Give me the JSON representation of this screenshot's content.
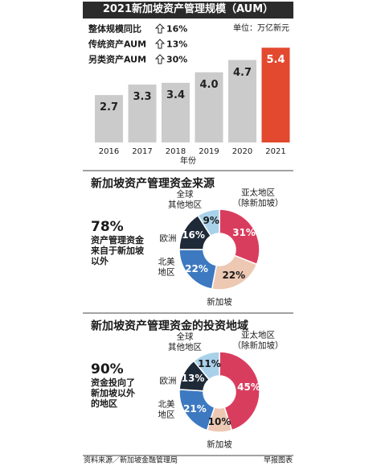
{
  "header": {
    "title": "2021新加坡资产管理规模（AUM）",
    "unit": "单位：万亿新元"
  },
  "stats": [
    {
      "label": "整体规模同比",
      "value": "16%"
    },
    {
      "label": "传统资产AUM",
      "value": "13%"
    },
    {
      "label": "另类资产AUM",
      "value": "30%"
    }
  ],
  "chart_data": [
    {
      "type": "bar",
      "categories": [
        "2016",
        "2017",
        "2018",
        "2019",
        "2020",
        "2021"
      ],
      "values": [
        2.7,
        3.3,
        3.4,
        4.0,
        4.7,
        5.4
      ],
      "value_labels": [
        "2.7",
        "3.3",
        "3.4",
        "4.0",
        "4.7",
        "5.4"
      ],
      "colors": [
        "#cbcbcb",
        "#cbcbcb",
        "#cbcbcb",
        "#cbcbcb",
        "#cbcbcb",
        "#e2492f"
      ],
      "xlabel": "年份"
    },
    {
      "type": "pie",
      "donut": true,
      "title": "新加坡资产管理资金来源",
      "highlight": "78%",
      "note": "资产管理资金\n来自于新加坡\n以外",
      "categories": [
        "亚太地区\n（除新加坡）",
        "新加坡",
        "北美\n地区",
        "欧洲",
        "全球\n其他地区"
      ],
      "values": [
        31,
        22,
        22,
        16,
        9
      ],
      "value_labels": [
        "31%",
        "22%",
        "22%",
        "16%",
        "9%"
      ],
      "colors": [
        "#d93d5e",
        "#edc8b3",
        "#3d79c1",
        "#1f2a38",
        "#a9d1ea"
      ]
    },
    {
      "type": "pie",
      "donut": true,
      "title": "新加坡资产管理资金的投资地域",
      "highlight": "90%",
      "note": "资金投向了\n新加坡以外\n的地区",
      "categories": [
        "亚太地区\n（除新加坡）",
        "新加坡",
        "北美\n地区",
        "欧洲",
        "全球\n其他地区"
      ],
      "values": [
        45,
        10,
        21,
        13,
        11
      ],
      "value_labels": [
        "45%",
        "10%",
        "21%",
        "13%",
        "11%"
      ],
      "colors": [
        "#d93d5e",
        "#edc8b3",
        "#3d79c1",
        "#1f2a38",
        "#a9d1ea"
      ]
    }
  ],
  "footer": {
    "source": "资料来源／新加坡金融管理局",
    "credit": "早报图表"
  }
}
